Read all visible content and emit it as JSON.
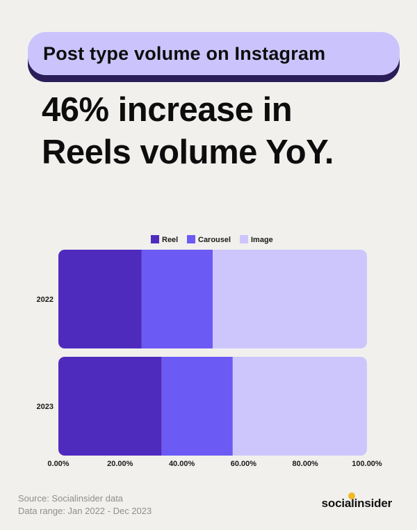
{
  "header": {
    "pill_title": "Post type volume on Instagram",
    "headline_line1": "46% increase in",
    "headline_line2": "Reels volume YoY."
  },
  "footer": {
    "source": "Source: Socialinsider data",
    "range": "Data range: Jan 2022 - Dec 2023",
    "brand": "socialinsider"
  },
  "colors": {
    "reel": "#4f2bbd",
    "carousel": "#6c5af4",
    "image": "#cdc6fc",
    "accent": "#f2b827"
  },
  "chart_data": {
    "type": "bar",
    "orientation": "horizontal",
    "stacked": true,
    "categories": [
      "2022",
      "2023"
    ],
    "series": [
      {
        "name": "Reel",
        "values": [
          27,
          33.5
        ]
      },
      {
        "name": "Carousel",
        "values": [
          23,
          23
        ]
      },
      {
        "name": "Image",
        "values": [
          50,
          43.5
        ]
      }
    ],
    "xlim": [
      0,
      100
    ],
    "x_ticks": [
      "0.00%",
      "20.00%",
      "40.00%",
      "60.00%",
      "80.00%",
      "100.00%"
    ],
    "legend_position": "top-center",
    "grid": false
  }
}
